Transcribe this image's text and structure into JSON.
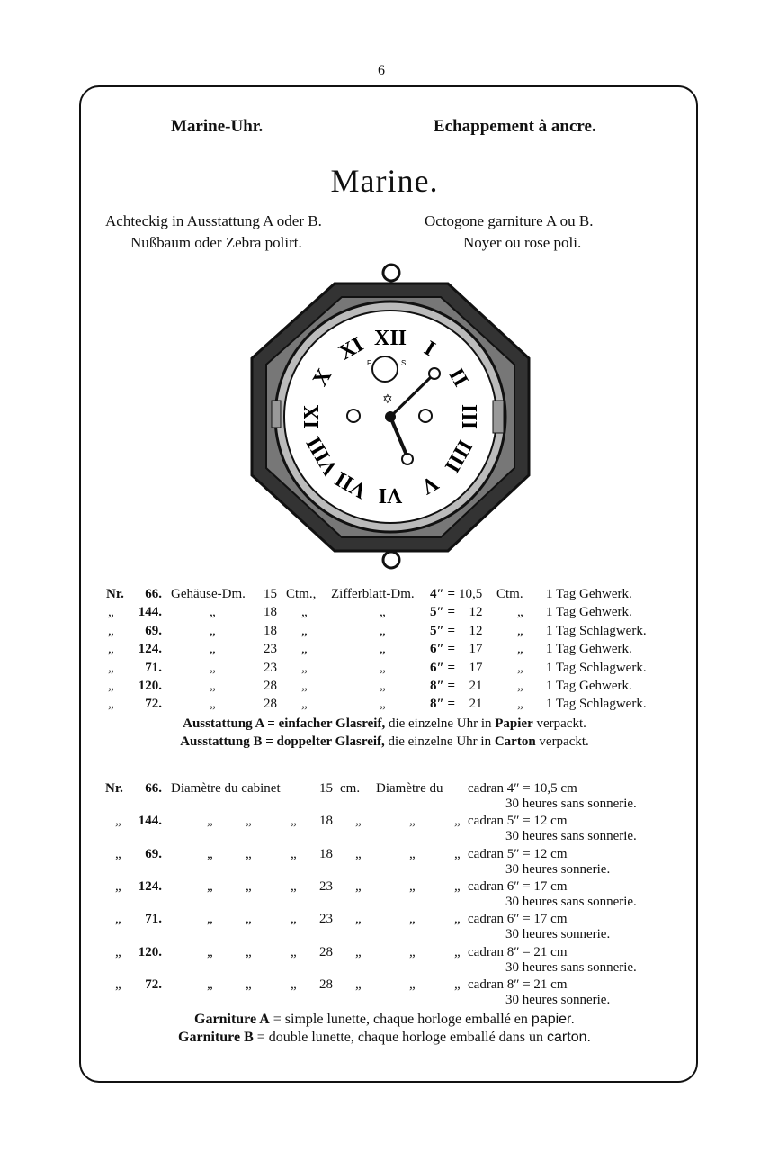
{
  "page_number": "6",
  "header": {
    "left": "Marine-Uhr.",
    "right": "Echappement à ancre."
  },
  "title": "Marine.",
  "subtitle_de": [
    "Achteckig in Ausstattung A oder B.",
    "Nußbaum oder Zebra polirt."
  ],
  "subtitle_fr": [
    "Octogone garniture A ou B.",
    "Noyer ou rose poli."
  ],
  "german_table": {
    "first_row_labels": {
      "nr": "Nr.",
      "case": "Gehäuse-Dm.",
      "unit": "Ctm.,",
      "dial": "Zifferblatt-Dm.",
      "dial_unit": "Ctm."
    },
    "ditto": "„",
    "rows": [
      {
        "nr": "66.",
        "case": "15",
        "dial_in": "4″ =",
        "dial_cm": "10,5",
        "movement": "1 Tag Gehwerk."
      },
      {
        "nr": "144.",
        "case": "18",
        "dial_in": "5″ =",
        "dial_cm": "12",
        "movement": "1 Tag Gehwerk."
      },
      {
        "nr": "69.",
        "case": "18",
        "dial_in": "5″ =",
        "dial_cm": "12",
        "movement": "1 Tag Schlagwerk."
      },
      {
        "nr": "124.",
        "case": "23",
        "dial_in": "6″ =",
        "dial_cm": "17",
        "movement": "1 Tag Gehwerk."
      },
      {
        "nr": "71.",
        "case": "23",
        "dial_in": "6″ =",
        "dial_cm": "17",
        "movement": "1 Tag Schlagwerk."
      },
      {
        "nr": "120.",
        "case": "28",
        "dial_in": "8″ =",
        "dial_cm": "21",
        "movement": "1 Tag Gehwerk."
      },
      {
        "nr": "72.",
        "case": "28",
        "dial_in": "8″ =",
        "dial_cm": "21",
        "movement": "1 Tag Schlagwerk."
      }
    ],
    "notes": [
      {
        "bold1": "Ausstattung A = einfacher Glasreif,",
        "text1": " die einzelne Uhr in ",
        "bold2": "Papier",
        "text2": " verpackt."
      },
      {
        "bold1": "Ausstattung B = doppelter Glasreif,",
        "text1": " die einzelne Uhr in ",
        "bold2": "Carton",
        "text2": " verpackt."
      }
    ]
  },
  "french_table": {
    "first_row_labels": {
      "nr": "Nr.",
      "case": "Diamètre du cabinet",
      "unit": "cm.",
      "dial": "Diamètre du"
    },
    "ditto": "„",
    "rows": [
      {
        "nr": "66.",
        "case": "15",
        "dial": "cadran 4″ = 10,5 cm",
        "movement": "30 heures sans sonnerie."
      },
      {
        "nr": "144.",
        "case": "18",
        "dial": "cadran 5″ =  12 cm",
        "movement": "30 heures sans sonnerie."
      },
      {
        "nr": "69.",
        "case": "18",
        "dial": "cadran 5″ =  12 cm",
        "movement": "30 heures sonnerie."
      },
      {
        "nr": "124.",
        "case": "23",
        "dial": "cadran 6″ =  17 cm",
        "movement": "30 heures sans sonnerie."
      },
      {
        "nr": "71.",
        "case": "23",
        "dial": "cadran 6″ =  17 cm",
        "movement": "30 heures sonnerie."
      },
      {
        "nr": "120.",
        "case": "28",
        "dial": "cadran 8″ =  21 cm",
        "movement": "30 heures sans sonnerie."
      },
      {
        "nr": "72.",
        "case": "28",
        "dial": "cadran 8″ =  21 cm",
        "movement": "30 heures sonnerie."
      }
    ],
    "notes": [
      {
        "bold1": "Garniture A",
        "text1": " = simple lunette, chaque horloge emballé en ",
        "bold2": "papier."
      },
      {
        "bold1": "Garniture B",
        "text1": " = double lunette, chaque horloge emballé dans un ",
        "bold2": "carton."
      }
    ]
  },
  "clock": {
    "numerals": [
      "XII",
      "I",
      "II",
      "III",
      "IIII",
      "V",
      "VI",
      "VII",
      "VIII",
      "IX",
      "X",
      "XI"
    ],
    "subdial_letters": [
      "F",
      "S"
    ]
  }
}
